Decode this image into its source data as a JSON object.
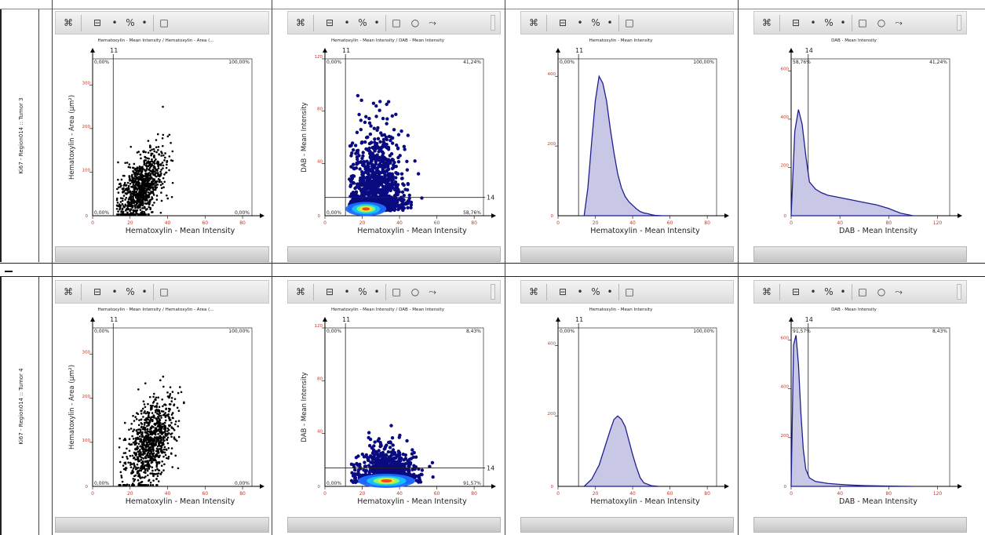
{
  "rows": [
    {
      "label": "Ki67 - Region014 :: Tumor 3",
      "panels": [
        {
          "type": "scatter",
          "title": "Hematoxylin - Mean Intensity / Hematoxylin - Area (...",
          "xlabel": "Hematoxylin - Mean Intensity",
          "ylabel": "Hematoxylin - Area (µm²)",
          "gate": "11",
          "q_tl": "0,00%",
          "q_tr": "100,00%",
          "q_bl": "0,00%",
          "q_br": "0,00%",
          "xticks": [
            "0",
            "20",
            "40",
            "60",
            "80"
          ],
          "yticks": [
            "100",
            "200",
            "300"
          ],
          "toolbar": "short"
        },
        {
          "type": "density",
          "title": "Hematoxylin - Mean Intensity / DAB - Mean Intensity",
          "xlabel": "Hematoxylin - Mean Intensity",
          "ylabel": "DAB - Mean Intensity",
          "gate": "11",
          "gate_y": "14",
          "q_tl": "0,00%",
          "q_tr": "41,24%",
          "q_bl": "0,00%",
          "q_br": "58,76%",
          "xticks": [
            "0",
            "20",
            "40",
            "60",
            "80"
          ],
          "yticks": [
            "40",
            "80",
            "120"
          ],
          "toolbar": "full"
        },
        {
          "type": "hist",
          "title": "Hematoxylin - Mean Intensity",
          "xlabel": "Hematoxylin - Mean Intensity",
          "gate": "11",
          "q_l": "0,00%",
          "q_r": "100,00%",
          "xticks": [
            "0",
            "20",
            "40",
            "60",
            "80"
          ],
          "yticks": [
            "200",
            "400"
          ],
          "toolbar": "short"
        },
        {
          "type": "hist2",
          "title": "DAB - Mean Intensity",
          "xlabel": "DAB - Mean Intensity",
          "gate": "14",
          "q_l": "58,76%",
          "q_r": "41,24%",
          "xticks": [
            "0",
            "40",
            "80",
            "120"
          ],
          "yticks": [
            "200",
            "400",
            "600"
          ],
          "toolbar": "full"
        }
      ]
    },
    {
      "label": "Ki67 - Region014 :: Tumor 4",
      "panels": [
        {
          "type": "scatter",
          "title": "Hematoxylin - Mean Intensity / Hematoxylin - Area (...",
          "xlabel": "Hematoxylin - Mean Intensity",
          "ylabel": "Hematoxylin - Area (µm²)",
          "gate": "11",
          "q_tl": "0,00%",
          "q_tr": "100,00%",
          "q_bl": "0,00%",
          "q_br": "0,00%",
          "xticks": [
            "0",
            "20",
            "40",
            "60",
            "80"
          ],
          "yticks": [
            "100",
            "200",
            "300"
          ],
          "toolbar": "short"
        },
        {
          "type": "density",
          "title": "Hematoxylin - Mean Intensity / DAB - Mean Intensity",
          "xlabel": "Hematoxylin - Mean Intensity",
          "ylabel": "DAB - Mean Intensity",
          "gate": "11",
          "gate_y": "14",
          "q_tl": "0,00%",
          "q_tr": "8,43%",
          "q_bl": "0,00%",
          "q_br": "91,57%",
          "xticks": [
            "0",
            "20",
            "40",
            "60",
            "80"
          ],
          "yticks": [
            "40",
            "80",
            "120"
          ],
          "toolbar": "full"
        },
        {
          "type": "hist",
          "title": "Hematoxylin - Mean Intensity",
          "xlabel": "Hematoxylin - Mean Intensity",
          "gate": "11",
          "q_l": "0,00%",
          "q_r": "100,00%",
          "xticks": [
            "0",
            "20",
            "40",
            "60",
            "80"
          ],
          "yticks": [
            "200",
            "400"
          ],
          "toolbar": "short"
        },
        {
          "type": "hist2",
          "title": "DAB - Mean Intensity",
          "xlabel": "DAB - Mean Intensity",
          "gate": "14",
          "q_l": "91,57%",
          "q_r": "8,43%",
          "xticks": [
            "0",
            "40",
            "80",
            "120"
          ],
          "yticks": [
            "200",
            "400",
            "600"
          ],
          "toolbar": "full"
        }
      ]
    }
  ],
  "toolbar": {
    "tools_icon": "⌘",
    "gate_icon": "⊟",
    "percent": "%",
    "dot": "•",
    "rect_icon": "□",
    "ellipse_icon": "○",
    "poly_icon": "⤳"
  },
  "colors": {
    "plot_line": "#1f1f8f",
    "hist_fill": "#c8c8e6",
    "scatter_dot": "#000000",
    "density_dot": "#0a0a80",
    "tick_label": "#c0392b"
  },
  "chart_data": [
    {
      "type": "scatter",
      "title": "Hematoxylin - Mean Intensity / Hematoxylin - Area (...",
      "xlabel": "Hematoxylin - Mean Intensity",
      "ylabel": "Hematoxylin - Area (µm²)",
      "xlim": [
        0,
        85
      ],
      "ylim": [
        0,
        360
      ]
    },
    {
      "type": "scatter",
      "title": "Hematoxylin - Mean Intensity / DAB - Mean Intensity",
      "xlabel": "Hematoxylin - Mean Intensity",
      "ylabel": "DAB - Mean Intensity",
      "xlim": [
        0,
        85
      ],
      "ylim": [
        0,
        120
      ]
    },
    {
      "type": "area",
      "title": "Hematoxylin - Mean Intensity",
      "xlabel": "Hematoxylin - Mean Intensity",
      "x": [
        14,
        16,
        18,
        20,
        22,
        24,
        26,
        28,
        30,
        32,
        34,
        36,
        38,
        40,
        42,
        44,
        46,
        48,
        50,
        52,
        56,
        60
      ],
      "values": [
        0,
        80,
        210,
        330,
        400,
        380,
        330,
        250,
        180,
        120,
        80,
        55,
        40,
        30,
        20,
        12,
        8,
        6,
        3,
        1,
        0,
        0
      ],
      "xlim": [
        0,
        85
      ],
      "ylim": [
        0,
        450
      ]
    },
    {
      "type": "area",
      "title": "DAB - Mean Intensity",
      "xlabel": "DAB - Mean Intensity",
      "x": [
        0,
        3,
        6,
        9,
        12,
        15,
        20,
        25,
        30,
        40,
        50,
        60,
        70,
        80,
        90,
        100
      ],
      "values": [
        0,
        350,
        440,
        380,
        250,
        140,
        110,
        95,
        85,
        75,
        65,
        55,
        45,
        30,
        10,
        0
      ],
      "xlim": [
        0,
        130
      ],
      "ylim": [
        0,
        650
      ]
    },
    {
      "type": "scatter",
      "title": "Hematoxylin - Mean Intensity / Hematoxylin - Area (...",
      "xlabel": "Hematoxylin - Mean Intensity",
      "ylabel": "Hematoxylin - Area (µm²)",
      "xlim": [
        0,
        85
      ],
      "ylim": [
        0,
        360
      ]
    },
    {
      "type": "scatter",
      "title": "Hematoxylin - Mean Intensity / DAB - Mean Intensity",
      "xlabel": "Hematoxylin - Mean Intensity",
      "ylabel": "DAB - Mean Intensity",
      "xlim": [
        0,
        85
      ],
      "ylim": [
        0,
        120
      ]
    },
    {
      "type": "area",
      "title": "Hematoxylin - Mean Intensity",
      "xlabel": "Hematoxylin - Mean Intensity",
      "x": [
        14,
        18,
        22,
        25,
        28,
        30,
        32,
        34,
        36,
        38,
        40,
        42,
        44,
        46,
        50,
        54
      ],
      "values": [
        0,
        20,
        60,
        110,
        160,
        190,
        200,
        190,
        170,
        130,
        90,
        55,
        25,
        10,
        2,
        0
      ],
      "xlim": [
        0,
        85
      ],
      "ylim": [
        0,
        450
      ]
    },
    {
      "type": "area",
      "title": "DAB - Mean Intensity",
      "xlabel": "DAB - Mean Intensity",
      "x": [
        0,
        2,
        4,
        6,
        8,
        10,
        12,
        15,
        20,
        30,
        40,
        50,
        60,
        80,
        100
      ],
      "values": [
        0,
        580,
        620,
        500,
        300,
        150,
        70,
        35,
        20,
        12,
        8,
        5,
        3,
        1,
        0
      ],
      "xlim": [
        0,
        130
      ],
      "ylim": [
        0,
        650
      ]
    }
  ]
}
